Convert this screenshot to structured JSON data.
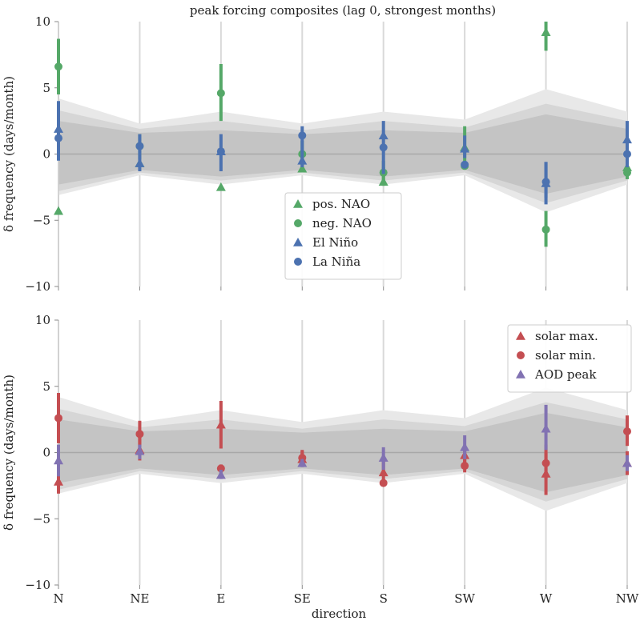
{
  "chart_data": [
    {
      "type": "scatter",
      "title": "peak forcing composites (lag 0, strongest months)",
      "xlabel": "",
      "ylabel": "δ frequency (days/month)",
      "categories": [
        "N",
        "NE",
        "E",
        "SE",
        "S",
        "SW",
        "W",
        "NW"
      ],
      "ylim": [
        -10,
        10
      ],
      "yticks": [
        -10,
        -5,
        0,
        5,
        10
      ],
      "grid": true,
      "legend_position": "center",
      "bands": [
        {
          "name": "outer",
          "color": "#e8e8e8",
          "lower": [
            -3.1,
            -1.6,
            -2.3,
            -1.6,
            -2.3,
            -1.6,
            -4.4,
            -2.3
          ],
          "upper": [
            4.2,
            2.3,
            3.2,
            2.3,
            3.2,
            2.6,
            4.9,
            3.2
          ]
        },
        {
          "name": "middle",
          "color": "#d6d6d6",
          "lower": [
            -2.8,
            -1.4,
            -2.0,
            -1.4,
            -2.0,
            -1.4,
            -3.7,
            -2.0
          ],
          "upper": [
            3.3,
            1.9,
            2.5,
            1.8,
            2.5,
            2.0,
            3.8,
            2.5
          ]
        },
        {
          "name": "inner",
          "color": "#c4c4c4",
          "lower": [
            -2.3,
            -1.2,
            -1.7,
            -1.2,
            -1.7,
            -1.2,
            -3.0,
            -1.7
          ],
          "upper": [
            2.5,
            1.6,
            1.8,
            1.5,
            1.8,
            1.6,
            3.0,
            1.9
          ]
        }
      ],
      "series": [
        {
          "name": "pos. NAO",
          "marker": "triangle",
          "color": "#55a868",
          "offset": 0.0,
          "values": [
            -4.3,
            -0.7,
            -2.5,
            -1.1,
            -2.1,
            0.5,
            9.2,
            -1.0
          ],
          "err": [
            null,
            null,
            null,
            null,
            [
              -2.4,
              -1.0
            ],
            [
              -1.0,
              2.1
            ],
            [
              7.8,
              10.0
            ],
            null
          ]
        },
        {
          "name": "neg. NAO",
          "marker": "circle",
          "color": "#55a868",
          "offset": 0.0,
          "values": [
            6.6,
            0.6,
            4.6,
            0.0,
            -1.4,
            -0.9,
            -5.7,
            -1.4
          ],
          "err": [
            [
              4.5,
              8.7
            ],
            [
              -0.4,
              1.5
            ],
            [
              2.5,
              6.8
            ],
            [
              -1.0,
              1.0
            ],
            [
              -2.3,
              -0.5
            ],
            null,
            [
              -7.0,
              -4.3
            ],
            [
              -1.9,
              -0.5
            ]
          ]
        },
        {
          "name": "El Niño",
          "marker": "triangle",
          "color": "#4c72b0",
          "offset": 0.0,
          "values": [
            1.9,
            -0.7,
            0.2,
            -0.5,
            1.4,
            0.4,
            -2.2,
            1.1
          ],
          "err": [
            [
              -0.5,
              4.0
            ],
            [
              -1.3,
              1.5
            ],
            [
              -1.3,
              1.5
            ],
            [
              -1.0,
              2.1
            ],
            [
              -1.5,
              2.5
            ],
            [
              -0.3,
              1.4
            ],
            [
              -3.3,
              -0.6
            ],
            [
              -1.0,
              2.5
            ]
          ]
        },
        {
          "name": "La Niña",
          "marker": "circle",
          "color": "#4c72b0",
          "offset": 0.0,
          "values": [
            1.2,
            0.6,
            0.2,
            1.4,
            0.5,
            -0.8,
            -2.1,
            0.0
          ],
          "err": [
            null,
            null,
            null,
            null,
            null,
            null,
            [
              -3.8,
              -0.6
            ],
            null
          ]
        }
      ]
    },
    {
      "type": "scatter",
      "title": "",
      "xlabel": "direction",
      "ylabel": "δ frequency (days/month)",
      "categories": [
        "N",
        "NE",
        "E",
        "SE",
        "S",
        "SW",
        "W",
        "NW"
      ],
      "ylim": [
        -10,
        10
      ],
      "yticks": [
        -10,
        -5,
        0,
        5,
        10
      ],
      "grid": true,
      "legend_position": "top-right",
      "bands": [
        {
          "name": "outer",
          "color": "#e8e8e8",
          "lower": [
            -3.1,
            -1.6,
            -2.3,
            -1.6,
            -2.3,
            -1.6,
            -4.4,
            -2.3
          ],
          "upper": [
            4.2,
            2.3,
            3.2,
            2.3,
            3.2,
            2.6,
            4.9,
            3.2
          ]
        },
        {
          "name": "middle",
          "color": "#d6d6d6",
          "lower": [
            -2.8,
            -1.4,
            -2.0,
            -1.4,
            -2.0,
            -1.4,
            -3.7,
            -2.0
          ],
          "upper": [
            3.3,
            1.9,
            2.5,
            1.8,
            2.5,
            2.0,
            3.8,
            2.5
          ]
        },
        {
          "name": "inner",
          "color": "#c4c4c4",
          "lower": [
            -2.3,
            -1.2,
            -1.7,
            -1.2,
            -1.7,
            -1.2,
            -3.0,
            -1.7
          ],
          "upper": [
            2.5,
            1.6,
            1.8,
            1.5,
            1.8,
            1.6,
            3.0,
            1.9
          ]
        }
      ],
      "series": [
        {
          "name": "solar max.",
          "marker": "triangle",
          "color": "#c44e52",
          "offset": 0.0,
          "values": [
            -2.2,
            0.2,
            2.1,
            -0.5,
            -1.5,
            -0.2,
            -1.6,
            -0.8
          ],
          "err": [
            [
              -3.1,
              -1.3
            ],
            [
              -0.6,
              1.2
            ],
            [
              0.3,
              3.9
            ],
            [
              -1.0,
              0.1
            ],
            [
              -2.4,
              -0.7
            ],
            [
              -0.8,
              0.5
            ],
            [
              -3.2,
              0.0
            ],
            [
              -1.7,
              0.1
            ]
          ]
        },
        {
          "name": "solar min.",
          "marker": "circle",
          "color": "#c44e52",
          "offset": 0.0,
          "values": [
            2.6,
            1.4,
            -1.2,
            -0.4,
            -2.3,
            -1.0,
            -0.8,
            1.6
          ],
          "err": [
            [
              0.7,
              4.5
            ],
            [
              0.5,
              2.4
            ],
            [
              -1.9,
              -0.9
            ],
            [
              -1.0,
              0.2
            ],
            null,
            [
              -1.5,
              -0.3
            ],
            [
              -2.0,
              0.6
            ],
            [
              0.5,
              2.8
            ]
          ]
        },
        {
          "name": "AOD peak",
          "marker": "triangle",
          "color": "#8172b2",
          "offset": 0.0,
          "values": [
            -0.6,
            0.1,
            -1.7,
            -0.8,
            -0.4,
            0.4,
            1.8,
            -0.8
          ],
          "err": [
            [
              -1.8,
              0.6
            ],
            [
              -0.5,
              0.6
            ],
            [
              -2.0,
              -1.3
            ],
            [
              -1.1,
              -0.5
            ],
            [
              -1.3,
              0.4
            ],
            [
              -0.5,
              1.3
            ],
            [
              0.2,
              3.6
            ],
            [
              -1.4,
              -0.2
            ]
          ]
        }
      ]
    }
  ]
}
